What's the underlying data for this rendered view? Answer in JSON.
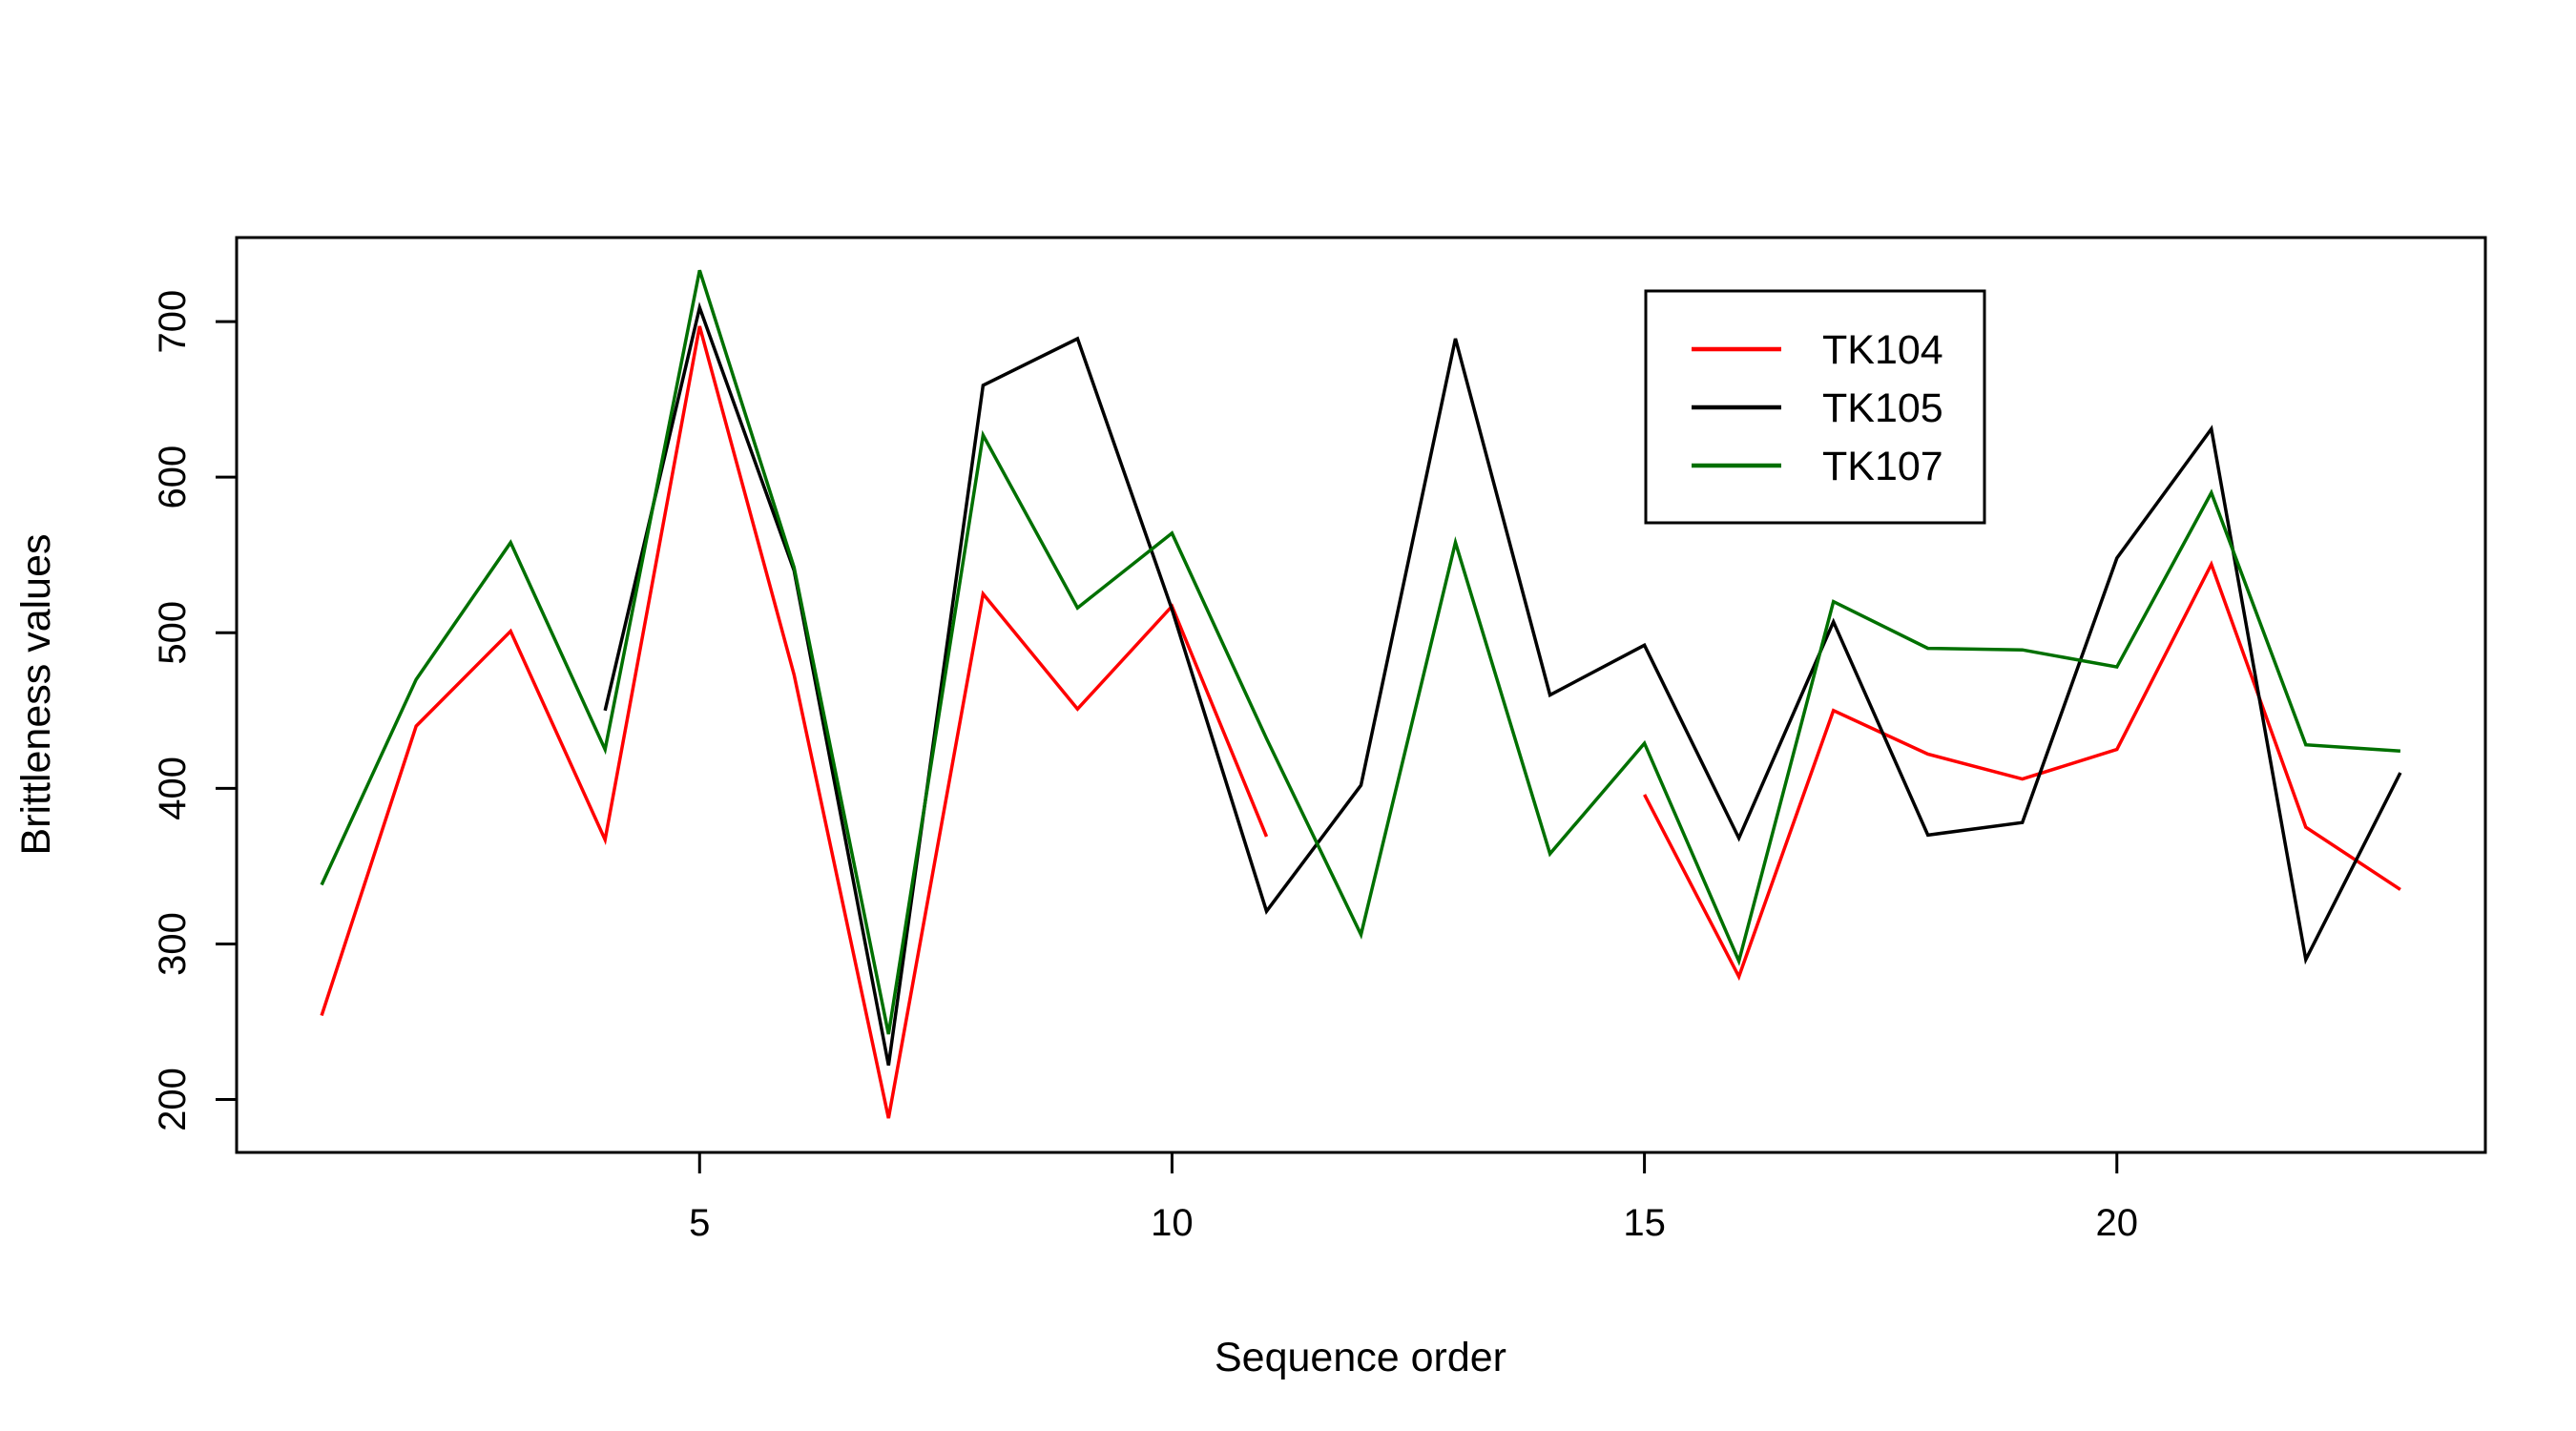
{
  "chart_data": {
    "type": "line",
    "xlabel": "Sequence order",
    "ylabel": "Brittleness values",
    "x": [
      1,
      2,
      3,
      4,
      5,
      6,
      7,
      8,
      9,
      10,
      11,
      12,
      13,
      14,
      15,
      16,
      17,
      18,
      19,
      20,
      21,
      22,
      23
    ],
    "xlim": [
      0.1,
      23.9
    ],
    "ylim": [
      166,
      754
    ],
    "x_ticks": [
      5,
      10,
      15,
      20
    ],
    "y_ticks": [
      200,
      300,
      400,
      500,
      600,
      700
    ],
    "grid": false,
    "legend_position": "top-right",
    "series": [
      {
        "name": "TK104",
        "color": "#ff0000",
        "values": [
          254,
          440,
          501,
          367,
          697,
          473,
          188,
          525,
          451,
          517,
          369,
          null,
          null,
          null,
          396,
          279,
          450,
          422,
          406,
          425,
          544,
          375,
          335
        ]
      },
      {
        "name": "TK105",
        "color": "#000000",
        "values": [
          null,
          null,
          null,
          450,
          709,
          540,
          222,
          659,
          689,
          515,
          321,
          402,
          689,
          460,
          492,
          368,
          507,
          370,
          378,
          548,
          631,
          290,
          410
        ]
      },
      {
        "name": "TK107",
        "color": "#007000",
        "values": [
          338,
          470,
          558,
          425,
          733,
          542,
          242,
          627,
          516,
          564,
          432,
          306,
          558,
          358,
          429,
          289,
          520,
          490,
          489,
          478,
          590,
          428,
          424
        ]
      }
    ]
  }
}
